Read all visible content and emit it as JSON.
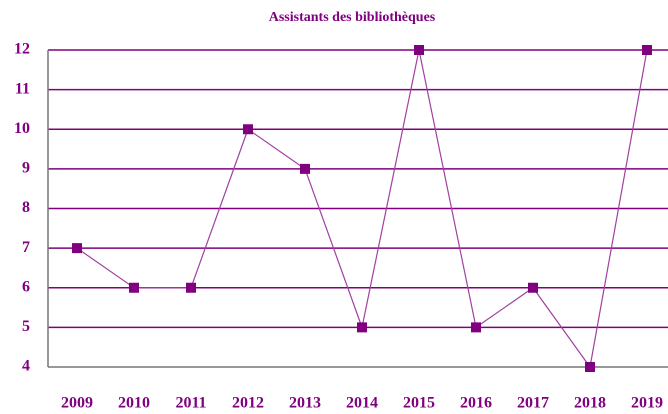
{
  "chart_data": {
    "type": "line",
    "title": "Assistants des bibliothèques",
    "categories": [
      "2009",
      "2010",
      "2011",
      "2012",
      "2013",
      "2014",
      "2015",
      "2016",
      "2017",
      "2018",
      "2019"
    ],
    "values": [
      7,
      6,
      6,
      10,
      9,
      5,
      12,
      5,
      6,
      4,
      12
    ],
    "color": "#800080",
    "ylim": [
      4,
      12
    ],
    "yticks": [
      4,
      5,
      6,
      7,
      8,
      9,
      10,
      11,
      12
    ],
    "grid": true
  }
}
